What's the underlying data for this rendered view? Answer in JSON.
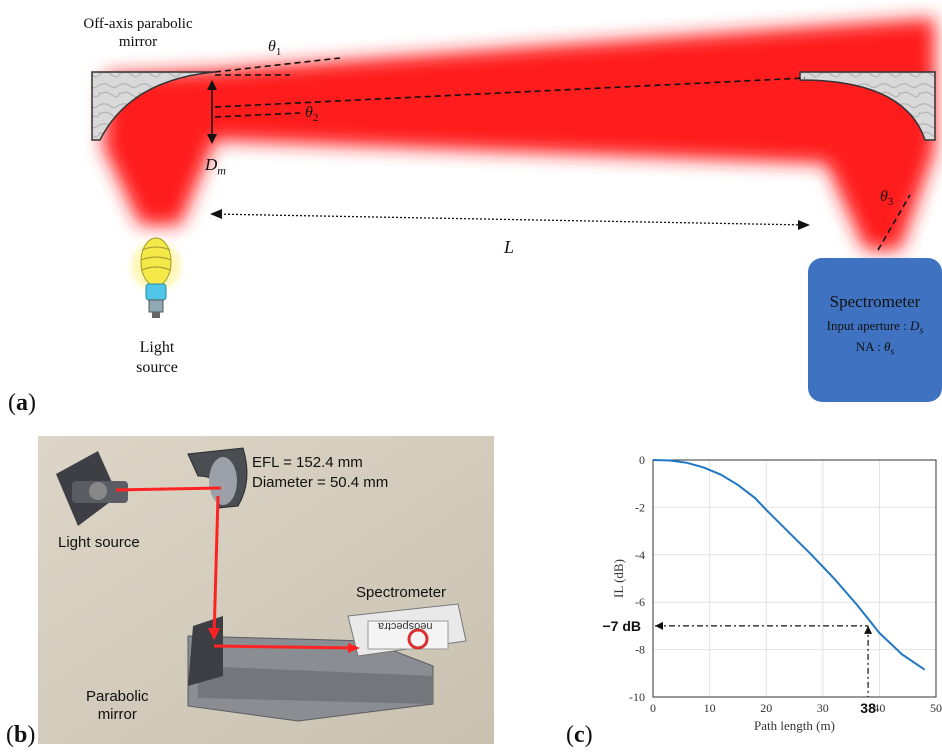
{
  "panel_a": {
    "label": "(a)",
    "mirror_label_line1": "Off-axis parabolic",
    "mirror_label_line2": "mirror",
    "theta1": "θ",
    "theta1_sub": "1",
    "theta2": "θ",
    "theta2_sub": "2",
    "theta3": "θ",
    "theta3_sub": "3",
    "dm": "D",
    "dm_sub": "m",
    "L": "L",
    "light_source_line1": "Light",
    "light_source_line2": "source",
    "spectrometer": {
      "title": "Spectrometer",
      "aperture": "Input aperture : ",
      "aperture_sym": "D",
      "aperture_sub": "s",
      "na": "NA : ",
      "na_sym": "θ",
      "na_sub": "s"
    },
    "colors": {
      "beam": "#ff1a1a",
      "spectrometer": "#3f72c0"
    }
  },
  "panel_b": {
    "label": "(b)",
    "efl": "EFL = 152.4 mm",
    "diameter": "Diameter = 50.4 mm",
    "light_source": "Light source",
    "spectrometer": "Spectrometer",
    "parabolic_line1": "Parabolic",
    "parabolic_line2": "mirror",
    "brand": "neospectra"
  },
  "panel_c": {
    "label": "(c)",
    "annotation_db": "−7 dB",
    "annotation_x": "38"
  },
  "chart_data": {
    "type": "line",
    "xlabel": "Path length (m)",
    "ylabel": "IL (dB)",
    "xlim": [
      0,
      50
    ],
    "ylim": [
      -10,
      0
    ],
    "xticks": [
      "0",
      "10",
      "20",
      "30",
      "40",
      "50"
    ],
    "yticks": [
      "0",
      "-2",
      "-4",
      "-6",
      "-8",
      "-10"
    ],
    "grid": true,
    "x": [
      0,
      3,
      6,
      9,
      12,
      15,
      18,
      20,
      24,
      28,
      32,
      36,
      38,
      40,
      44,
      48
    ],
    "series": [
      {
        "values": [
          0,
          -0.02,
          -0.12,
          -0.32,
          -0.62,
          -1.05,
          -1.6,
          -2.1,
          -3.05,
          -4.0,
          -5.0,
          -6.1,
          -6.7,
          -7.3,
          -8.2,
          -8.85
        ]
      }
    ],
    "line_color": "#1f77c4"
  }
}
